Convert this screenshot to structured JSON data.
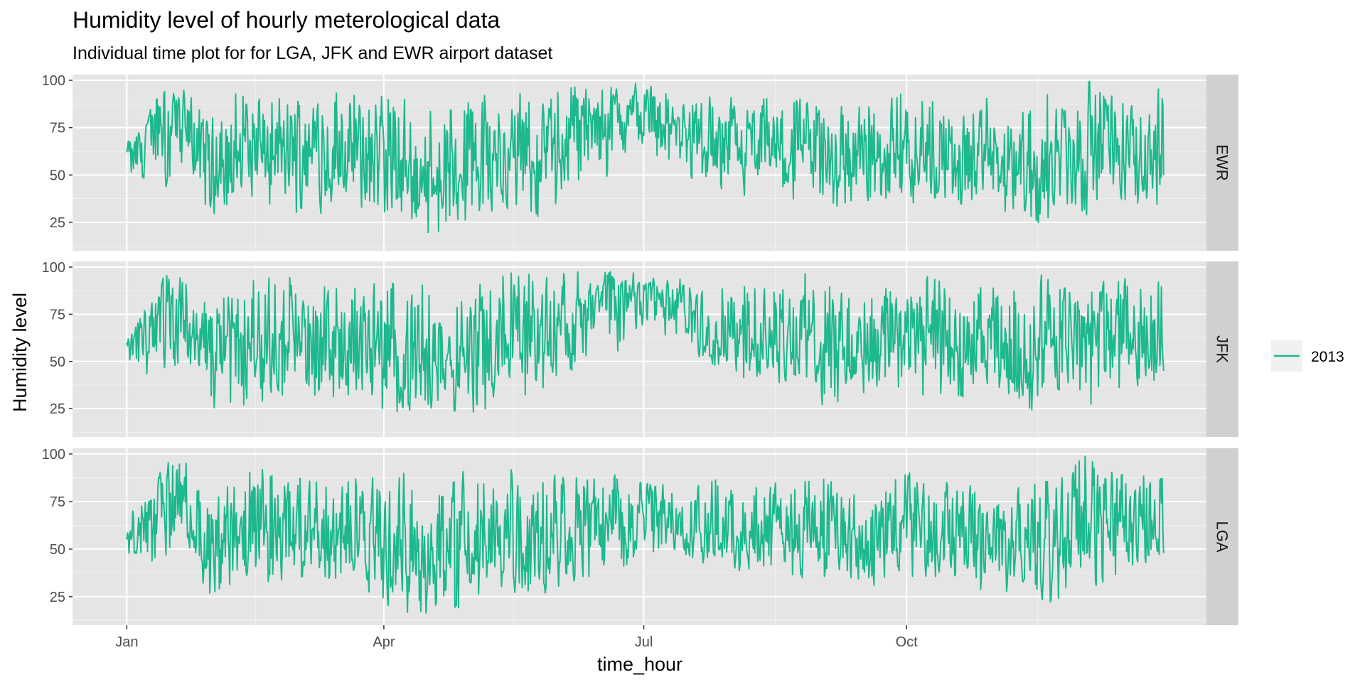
{
  "chart_data": {
    "type": "line",
    "title": "Humidity level of hourly meterological data",
    "subtitle": "Individual time plot for for LGA, JFK and EWR airport dataset",
    "xlabel": "time_hour",
    "ylabel": "Humidity level",
    "x_ticks": [
      "Jan",
      "Apr",
      "Jul",
      "Oct"
    ],
    "x_tick_dates": [
      "2013-01-01",
      "2013-04-01",
      "2013-07-01",
      "2013-10-01"
    ],
    "x_range": [
      "2012-12-13",
      "2014-01-14"
    ],
    "y_ticks": [
      25,
      50,
      75,
      100
    ],
    "ylim": [
      10,
      103
    ],
    "grid": true,
    "legend": {
      "placement": "right",
      "entries": [
        "2013"
      ]
    },
    "line_color": "#1db88e",
    "panel_background": "#e5e5e5",
    "strip_background": "#d0d0d0",
    "facets": [
      {
        "name": "EWR",
        "series_name": "2013",
        "x": [
          "2013-01-01",
          "2013-01-08",
          "2013-01-15",
          "2013-01-22",
          "2013-01-29",
          "2013-02-05",
          "2013-02-12",
          "2013-02-19",
          "2013-02-26",
          "2013-03-05",
          "2013-03-12",
          "2013-03-19",
          "2013-03-26",
          "2013-04-02",
          "2013-04-09",
          "2013-04-16",
          "2013-04-23",
          "2013-04-30",
          "2013-05-07",
          "2013-05-14",
          "2013-05-21",
          "2013-05-28",
          "2013-06-04",
          "2013-06-11",
          "2013-06-18",
          "2013-06-25",
          "2013-07-02",
          "2013-07-09",
          "2013-07-16",
          "2013-07-23",
          "2013-07-30",
          "2013-08-06",
          "2013-08-13",
          "2013-08-20",
          "2013-08-27",
          "2013-09-03",
          "2013-09-10",
          "2013-09-17",
          "2013-09-24",
          "2013-10-01",
          "2013-10-08",
          "2013-10-15",
          "2013-10-22",
          "2013-10-29",
          "2013-11-05",
          "2013-11-12",
          "2013-11-19",
          "2013-11-26",
          "2013-12-03",
          "2013-12-10",
          "2013-12-17",
          "2013-12-24",
          "2013-12-30"
        ],
        "y_low": [
          48,
          40,
          42,
          55,
          30,
          25,
          30,
          27,
          30,
          28,
          25,
          26,
          22,
          20,
          18,
          16,
          20,
          18,
          25,
          28,
          22,
          30,
          35,
          40,
          45,
          55,
          62,
          55,
          48,
          42,
          38,
          36,
          40,
          35,
          32,
          30,
          30,
          28,
          32,
          35,
          30,
          28,
          26,
          28,
          24,
          22,
          20,
          25,
          28,
          30,
          35,
          32,
          30
        ],
        "y_high": [
          70,
          82,
          100,
          100,
          88,
          90,
          100,
          95,
          98,
          92,
          100,
          96,
          98,
          100,
          95,
          90,
          96,
          100,
          95,
          100,
          98,
          100,
          100,
          98,
          100,
          100,
          98,
          95,
          92,
          96,
          94,
          90,
          92,
          90,
          95,
          96,
          92,
          90,
          94,
          100,
          98,
          95,
          90,
          92,
          85,
          90,
          96,
          100,
          100,
          100,
          92,
          98,
          100
        ],
        "y": [
          62,
          75,
          95,
          70,
          55,
          60,
          68,
          58,
          62,
          65,
          60,
          55,
          58,
          50,
          48,
          45,
          52,
          55,
          58,
          60,
          56,
          62,
          72,
          75,
          78,
          82,
          85,
          80,
          70,
          65,
          62,
          60,
          63,
          58,
          60,
          62,
          58,
          55,
          60,
          64,
          62,
          58,
          55,
          56,
          52,
          50,
          55,
          60,
          65,
          68,
          62,
          60,
          50
        ]
      },
      {
        "name": "JFK",
        "series_name": "2013",
        "x": [
          "2013-01-01",
          "2013-01-08",
          "2013-01-15",
          "2013-01-22",
          "2013-01-29",
          "2013-02-05",
          "2013-02-12",
          "2013-02-19",
          "2013-02-26",
          "2013-03-05",
          "2013-03-12",
          "2013-03-19",
          "2013-03-26",
          "2013-04-02",
          "2013-04-09",
          "2013-04-16",
          "2013-04-23",
          "2013-04-30",
          "2013-05-07",
          "2013-05-14",
          "2013-05-21",
          "2013-05-28",
          "2013-06-04",
          "2013-06-11",
          "2013-06-18",
          "2013-06-25",
          "2013-07-02",
          "2013-07-09",
          "2013-07-16",
          "2013-07-23",
          "2013-07-30",
          "2013-08-06",
          "2013-08-13",
          "2013-08-20",
          "2013-08-27",
          "2013-09-03",
          "2013-09-10",
          "2013-09-17",
          "2013-09-24",
          "2013-10-01",
          "2013-10-08",
          "2013-10-15",
          "2013-10-22",
          "2013-10-29",
          "2013-11-05",
          "2013-11-12",
          "2013-11-19",
          "2013-11-26",
          "2013-12-03",
          "2013-12-10",
          "2013-12-17",
          "2013-12-24",
          "2013-12-30"
        ],
        "y_low": [
          42,
          38,
          40,
          45,
          25,
          20,
          22,
          25,
          25,
          24,
          25,
          24,
          22,
          18,
          16,
          15,
          18,
          16,
          22,
          26,
          24,
          30,
          38,
          45,
          50,
          58,
          65,
          60,
          55,
          45,
          42,
          38,
          40,
          36,
          34,
          22,
          30,
          28,
          30,
          35,
          30,
          28,
          25,
          27,
          24,
          22,
          20,
          22,
          24,
          28,
          34,
          35,
          38
        ],
        "y_high": [
          65,
          80,
          100,
          100,
          90,
          95,
          100,
          100,
          98,
          92,
          100,
          96,
          98,
          100,
          98,
          95,
          96,
          100,
          98,
          100,
          100,
          100,
          100,
          100,
          100,
          98,
          96,
          94,
          95,
          96,
          95,
          94,
          95,
          96,
          98,
          100,
          95,
          94,
          96,
          96,
          98,
          95,
          92,
          94,
          90,
          94,
          98,
          100,
          100,
          100,
          95,
          100,
          96
        ],
        "y": [
          60,
          72,
          95,
          70,
          55,
          58,
          66,
          60,
          62,
          64,
          60,
          56,
          58,
          52,
          48,
          46,
          52,
          55,
          58,
          62,
          60,
          66,
          75,
          82,
          85,
          88,
          90,
          85,
          78,
          70,
          66,
          64,
          66,
          62,
          62,
          64,
          60,
          58,
          62,
          66,
          64,
          60,
          56,
          58,
          54,
          52,
          56,
          60,
          66,
          70,
          66,
          64,
          45
        ]
      },
      {
        "name": "LGA",
        "series_name": "2013",
        "x": [
          "2013-01-01",
          "2013-01-08",
          "2013-01-15",
          "2013-01-22",
          "2013-01-29",
          "2013-02-05",
          "2013-02-12",
          "2013-02-19",
          "2013-02-26",
          "2013-03-05",
          "2013-03-12",
          "2013-03-19",
          "2013-03-26",
          "2013-04-02",
          "2013-04-09",
          "2013-04-16",
          "2013-04-23",
          "2013-04-30",
          "2013-05-07",
          "2013-05-14",
          "2013-05-21",
          "2013-05-28",
          "2013-06-04",
          "2013-06-11",
          "2013-06-18",
          "2013-06-25",
          "2013-07-02",
          "2013-07-09",
          "2013-07-16",
          "2013-07-23",
          "2013-07-30",
          "2013-08-06",
          "2013-08-13",
          "2013-08-20",
          "2013-08-27",
          "2013-09-03",
          "2013-09-10",
          "2013-09-17",
          "2013-09-24",
          "2013-10-01",
          "2013-10-08",
          "2013-10-15",
          "2013-10-22",
          "2013-10-29",
          "2013-11-05",
          "2013-11-12",
          "2013-11-19",
          "2013-11-26",
          "2013-12-03",
          "2013-12-10",
          "2013-12-17",
          "2013-12-24",
          "2013-12-30"
        ],
        "y_low": [
          45,
          40,
          42,
          50,
          25,
          20,
          28,
          26,
          30,
          30,
          28,
          28,
          25,
          18,
          15,
          14,
          16,
          15,
          20,
          22,
          18,
          25,
          30,
          32,
          35,
          40,
          48,
          45,
          42,
          40,
          38,
          36,
          38,
          35,
          32,
          30,
          30,
          28,
          32,
          35,
          30,
          28,
          24,
          26,
          22,
          20,
          18,
          20,
          25,
          30,
          35,
          38,
          40
        ],
        "y_high": [
          68,
          82,
          100,
          100,
          88,
          92,
          100,
          98,
          96,
          90,
          98,
          94,
          96,
          95,
          92,
          88,
          92,
          98,
          96,
          100,
          96,
          98,
          96,
          94,
          92,
          90,
          88,
          86,
          88,
          90,
          90,
          88,
          90,
          88,
          92,
          94,
          90,
          88,
          92,
          96,
          94,
          90,
          88,
          90,
          86,
          88,
          94,
          98,
          100,
          100,
          94,
          96,
          90
        ],
        "y": [
          55,
          68,
          92,
          66,
          52,
          56,
          62,
          56,
          60,
          62,
          58,
          52,
          54,
          48,
          44,
          42,
          46,
          50,
          54,
          56,
          52,
          58,
          62,
          64,
          66,
          68,
          70,
          66,
          62,
          58,
          56,
          55,
          58,
          55,
          56,
          58,
          55,
          52,
          56,
          60,
          58,
          55,
          52,
          53,
          50,
          48,
          52,
          58,
          64,
          68,
          62,
          60,
          48
        ]
      }
    ]
  }
}
